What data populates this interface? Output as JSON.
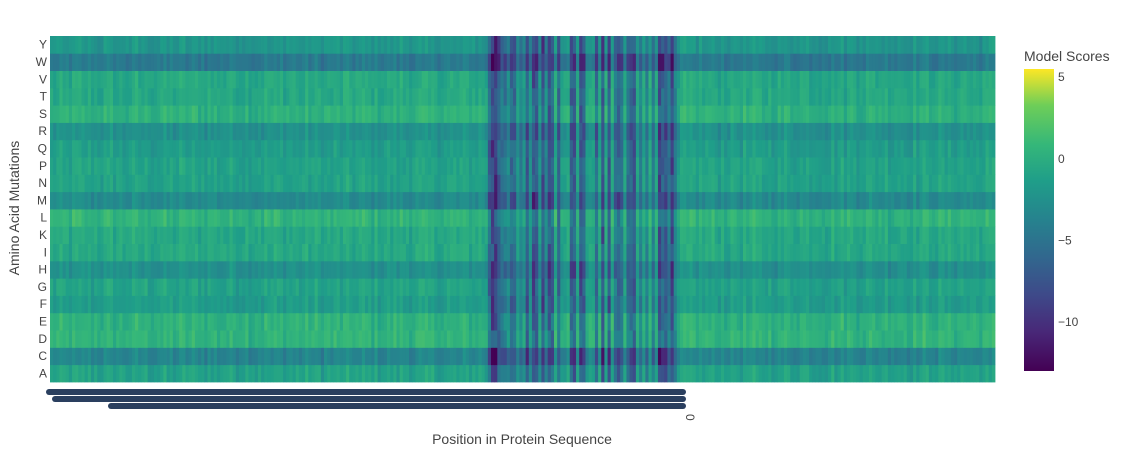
{
  "chart_data": {
    "type": "heatmap",
    "xlabel": "Position in Protein Sequence",
    "ylabel": "Amino Acid Mutations",
    "colorbar": {
      "title": "Model Scores",
      "range": [
        -13,
        5.5
      ],
      "ticks": [
        5,
        0,
        -5,
        -10
      ],
      "tick_labels": [
        "5",
        "0",
        "−5",
        "−10"
      ],
      "colorscale": "Viridis"
    },
    "rows": [
      "A",
      "C",
      "D",
      "E",
      "F",
      "G",
      "H",
      "I",
      "K",
      "L",
      "M",
      "N",
      "P",
      "Q",
      "R",
      "S",
      "T",
      "V",
      "W",
      "Y"
    ],
    "x_tick_visible_label": "0",
    "approx_columns": 300,
    "row_baseline": {
      "A": -1.0,
      "C": -3.5,
      "D": 0.5,
      "E": 0.3,
      "F": -1.5,
      "G": -1.0,
      "H": -2.5,
      "I": -0.5,
      "K": -0.5,
      "L": 0.5,
      "M": -3.0,
      "N": -1.0,
      "P": -1.0,
      "Q": -1.5,
      "R": -2.5,
      "S": 0.3,
      "T": -0.5,
      "V": -0.5,
      "W": -4.5,
      "Y": -2.0
    },
    "low_region_fraction": [
      0.46,
      0.68
    ]
  }
}
